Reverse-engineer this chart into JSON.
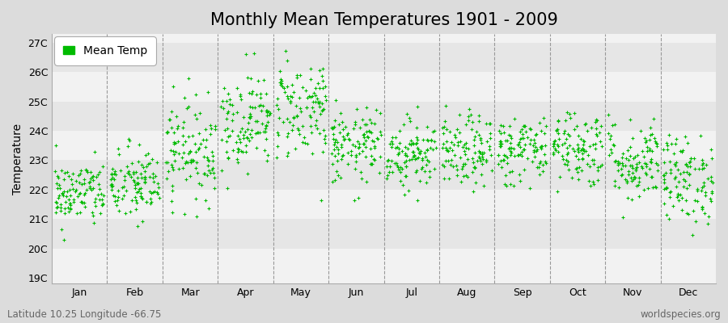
{
  "title": "Monthly Mean Temperatures 1901 - 2009",
  "ylabel": "Temperature",
  "subtitle": "Latitude 10.25 Longitude -66.75",
  "watermark": "worldspecies.org",
  "dot_color": "#00BB00",
  "dot_size": 6,
  "bg_color": "#DCDCDC",
  "plot_bg_color": "#F2F2F2",
  "band_color_light": "#F2F2F2",
  "band_color_dark": "#E6E6E6",
  "legend_label": "Mean Temp",
  "ytick_labels": [
    "19C",
    "20C",
    "21C",
    "22C",
    "23C",
    "24C",
    "25C",
    "26C",
    "27C"
  ],
  "ytick_values": [
    19,
    20,
    21,
    22,
    23,
    24,
    25,
    26,
    27
  ],
  "ylim": [
    18.8,
    27.3
  ],
  "months": [
    "Jan",
    "Feb",
    "Mar",
    "Apr",
    "May",
    "Jun",
    "Jul",
    "Aug",
    "Sep",
    "Oct",
    "Nov",
    "Dec"
  ],
  "dashed_line_color": "#999999",
  "title_fontsize": 15,
  "axis_fontsize": 10,
  "tick_fontsize": 9,
  "monthly_means": [
    21.7,
    22.0,
    23.2,
    24.2,
    24.6,
    23.3,
    23.1,
    23.1,
    23.2,
    23.3,
    22.8,
    22.2
  ],
  "monthly_stds": [
    0.55,
    0.65,
    0.85,
    0.82,
    0.88,
    0.62,
    0.6,
    0.6,
    0.6,
    0.65,
    0.7,
    0.75
  ]
}
